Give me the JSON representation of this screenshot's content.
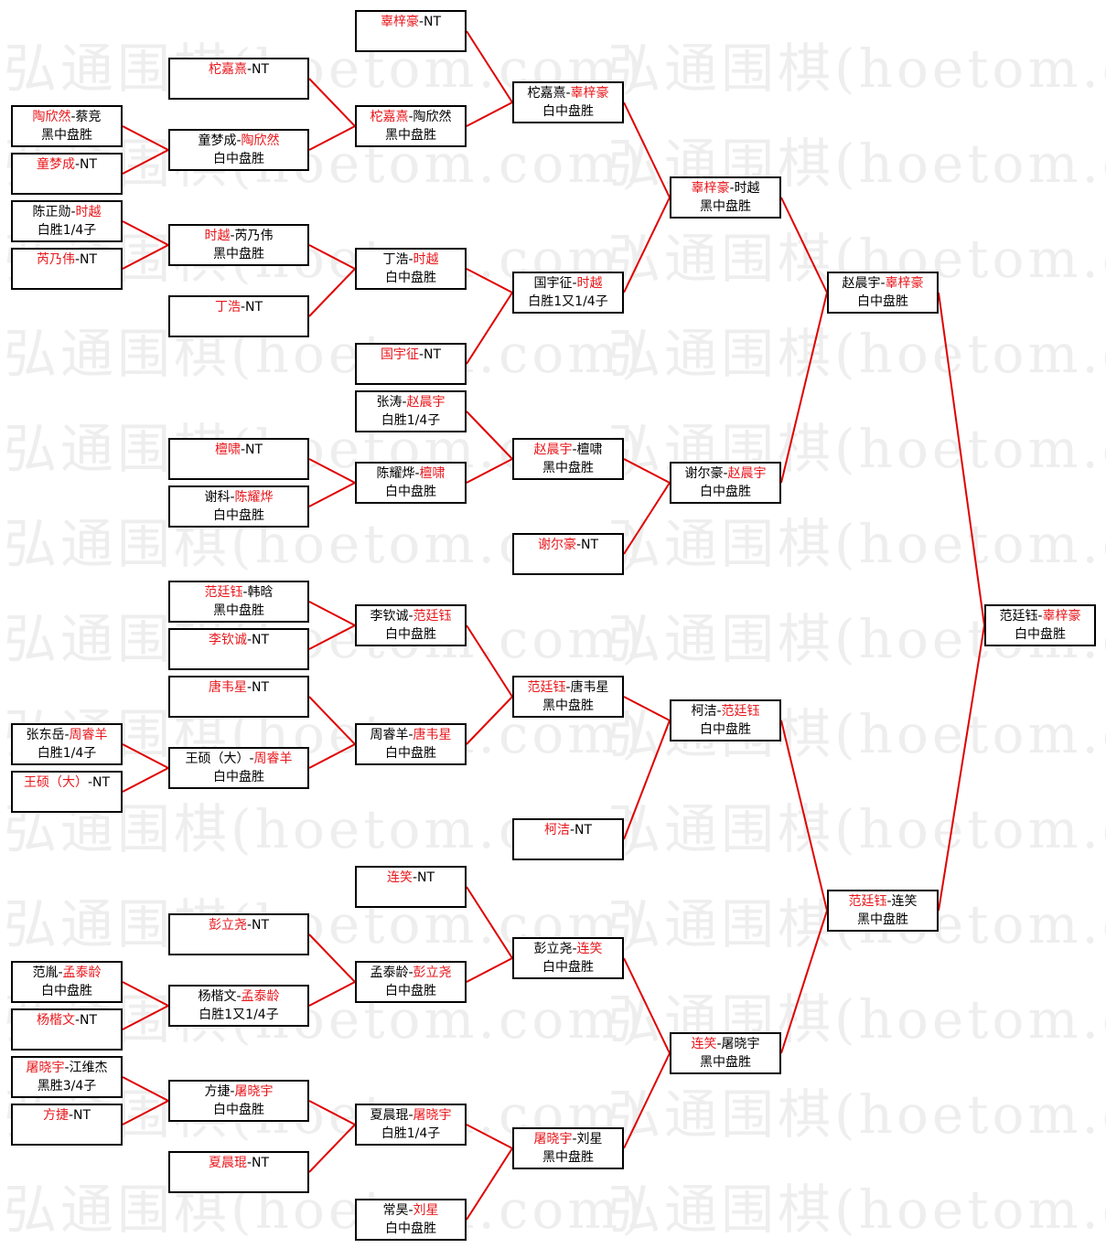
{
  "watermark": "弘通围棋(hoetom.com)",
  "line_color": "#e00000",
  "winner_color": "#e8171c",
  "separator": "-",
  "matches": [
    {
      "id": "a0",
      "players": [
        "陶欣然",
        "蔡竞"
      ],
      "winner": 0,
      "result": "黑中盘胜",
      "next": "b1"
    },
    {
      "id": "a1",
      "players": [
        "童梦成",
        "NT"
      ],
      "winner": 0,
      "result": "",
      "next": "b1"
    },
    {
      "id": "a2",
      "players": [
        "陈正勋",
        "时越"
      ],
      "winner": 1,
      "result": "白胜1/4子",
      "next": "b2"
    },
    {
      "id": "a3",
      "players": [
        "芮乃伟",
        "NT"
      ],
      "winner": 0,
      "result": "",
      "next": "b2"
    },
    {
      "id": "a4",
      "players": [
        "张东岳",
        "周睿羊"
      ],
      "winner": 1,
      "result": "白胜1/4子",
      "next": "b9"
    },
    {
      "id": "a5",
      "players": [
        "王硕（大）",
        "NT"
      ],
      "winner": 0,
      "result": "",
      "next": "b9"
    },
    {
      "id": "a6",
      "players": [
        "范胤",
        "孟泰龄"
      ],
      "winner": 1,
      "result": "白中盘胜",
      "next": "b11"
    },
    {
      "id": "a7",
      "players": [
        "杨楷文",
        "NT"
      ],
      "winner": 0,
      "result": "",
      "next": "b11"
    },
    {
      "id": "a8",
      "players": [
        "屠晓宇",
        "江维杰"
      ],
      "winner": 0,
      "result": "黑胜3/4子",
      "next": "b12"
    },
    {
      "id": "a9",
      "players": [
        "方捷",
        "NT"
      ],
      "winner": 0,
      "result": "",
      "next": "b12"
    },
    {
      "id": "b0",
      "players": [
        "柁嘉熹",
        "NT"
      ],
      "winner": 0,
      "result": "",
      "next": "c1"
    },
    {
      "id": "b1",
      "players": [
        "童梦成",
        "陶欣然"
      ],
      "winner": 1,
      "result": "白中盘胜",
      "next": "c1"
    },
    {
      "id": "b2",
      "players": [
        "时越",
        "芮乃伟"
      ],
      "winner": 0,
      "result": "黑中盘胜",
      "next": "c2"
    },
    {
      "id": "b3",
      "players": [
        "丁浩",
        "NT"
      ],
      "winner": 0,
      "result": "",
      "next": "c2"
    },
    {
      "id": "b4",
      "players": [
        "檀啸",
        "NT"
      ],
      "winner": 0,
      "result": "",
      "next": "c5"
    },
    {
      "id": "b5",
      "players": [
        "谢科",
        "陈耀烨"
      ],
      "winner": 1,
      "result": "白中盘胜",
      "next": "c5"
    },
    {
      "id": "b6",
      "players": [
        "范廷钰",
        "韩晗"
      ],
      "winner": 0,
      "result": "黑中盘胜",
      "next": "c6"
    },
    {
      "id": "b7",
      "players": [
        "李钦诚",
        "NT"
      ],
      "winner": 0,
      "result": "",
      "next": "c6"
    },
    {
      "id": "b8",
      "players": [
        "唐韦星",
        "NT"
      ],
      "winner": 0,
      "result": "",
      "next": "c7"
    },
    {
      "id": "b9",
      "players": [
        "王硕（大）",
        "周睿羊"
      ],
      "winner": 1,
      "result": "白中盘胜",
      "next": "c7"
    },
    {
      "id": "b10",
      "players": [
        "彭立尧",
        "NT"
      ],
      "winner": 0,
      "result": "",
      "next": "c9"
    },
    {
      "id": "b11",
      "players": [
        "杨楷文",
        "孟泰龄"
      ],
      "winner": 1,
      "result": "白胜1又1/4子",
      "next": "c9"
    },
    {
      "id": "b12",
      "players": [
        "方捷",
        "屠晓宇"
      ],
      "winner": 1,
      "result": "白中盘胜",
      "next": "c10"
    },
    {
      "id": "b13",
      "players": [
        "夏晨琨",
        "NT"
      ],
      "winner": 0,
      "result": "",
      "next": "c10"
    },
    {
      "id": "c0",
      "players": [
        "辜梓豪",
        "NT"
      ],
      "winner": 0,
      "result": "",
      "next": "d0"
    },
    {
      "id": "c1",
      "players": [
        "柁嘉熹",
        "陶欣然"
      ],
      "winner": 0,
      "result": "黑中盘胜",
      "next": "d0"
    },
    {
      "id": "c2",
      "players": [
        "丁浩",
        "时越"
      ],
      "winner": 1,
      "result": "白中盘胜",
      "next": "d1"
    },
    {
      "id": "c3",
      "players": [
        "国宇征",
        "NT"
      ],
      "winner": 0,
      "result": "",
      "next": "d1"
    },
    {
      "id": "c4",
      "players": [
        "张涛",
        "赵晨宇"
      ],
      "winner": 1,
      "result": "白胜1/4子",
      "next": "d2"
    },
    {
      "id": "c5",
      "players": [
        "陈耀烨",
        "檀啸"
      ],
      "winner": 1,
      "result": "白中盘胜",
      "next": "d2"
    },
    {
      "id": "c6",
      "players": [
        "李钦诚",
        "范廷钰"
      ],
      "winner": 1,
      "result": "白中盘胜",
      "next": "d4"
    },
    {
      "id": "c7",
      "players": [
        "周睿羊",
        "唐韦星"
      ],
      "winner": 1,
      "result": "白中盘胜",
      "next": "d4"
    },
    {
      "id": "c8",
      "players": [
        "连笑",
        "NT"
      ],
      "winner": 0,
      "result": "",
      "next": "d6"
    },
    {
      "id": "c9",
      "players": [
        "孟泰龄",
        "彭立尧"
      ],
      "winner": 1,
      "result": "白中盘胜",
      "next": "d6"
    },
    {
      "id": "c10",
      "players": [
        "夏晨琨",
        "屠晓宇"
      ],
      "winner": 1,
      "result": "白胜1/4子",
      "next": "d7"
    },
    {
      "id": "c11",
      "players": [
        "常昊",
        "刘星"
      ],
      "winner": 1,
      "result": "白中盘胜",
      "next": "d7"
    },
    {
      "id": "d0",
      "players": [
        "柁嘉熹",
        "辜梓豪"
      ],
      "winner": 1,
      "result": "白中盘胜",
      "next": "e0"
    },
    {
      "id": "d1",
      "players": [
        "国宇征",
        "时越"
      ],
      "winner": 1,
      "result": "白胜1又1/4子",
      "next": "e0"
    },
    {
      "id": "d2",
      "players": [
        "赵晨宇",
        "檀啸"
      ],
      "winner": 0,
      "result": "黑中盘胜",
      "next": "e1"
    },
    {
      "id": "d3",
      "players": [
        "谢尔豪",
        "NT"
      ],
      "winner": 0,
      "result": "",
      "next": "e1"
    },
    {
      "id": "d4",
      "players": [
        "范廷钰",
        "唐韦星"
      ],
      "winner": 0,
      "result": "黑中盘胜",
      "next": "e2"
    },
    {
      "id": "d5",
      "players": [
        "柯洁",
        "NT"
      ],
      "winner": 0,
      "result": "",
      "next": "e2"
    },
    {
      "id": "d6",
      "players": [
        "彭立尧",
        "连笑"
      ],
      "winner": 1,
      "result": "白中盘胜",
      "next": "e3"
    },
    {
      "id": "d7",
      "players": [
        "屠晓宇",
        "刘星"
      ],
      "winner": 0,
      "result": "黑中盘胜",
      "next": "e3"
    },
    {
      "id": "e0",
      "players": [
        "辜梓豪",
        "时越"
      ],
      "winner": 0,
      "result": "黑中盘胜",
      "next": "f0"
    },
    {
      "id": "e1",
      "players": [
        "谢尔豪",
        "赵晨宇"
      ],
      "winner": 1,
      "result": "白中盘胜",
      "next": "f0"
    },
    {
      "id": "e2",
      "players": [
        "柯洁",
        "范廷钰"
      ],
      "winner": 1,
      "result": "白中盘胜",
      "next": "f1"
    },
    {
      "id": "e3",
      "players": [
        "连笑",
        "屠晓宇"
      ],
      "winner": 0,
      "result": "黑中盘胜",
      "next": "f1"
    },
    {
      "id": "f0",
      "players": [
        "赵晨宇",
        "辜梓豪"
      ],
      "winner": 1,
      "result": "白中盘胜",
      "next": "g0"
    },
    {
      "id": "f1",
      "players": [
        "范廷钰",
        "连笑"
      ],
      "winner": 0,
      "result": "黑中盘胜",
      "next": "g0"
    },
    {
      "id": "g0",
      "players": [
        "范廷钰",
        "辜梓豪"
      ],
      "winner": 1,
      "result": "白中盘胜",
      "next": null
    }
  ]
}
